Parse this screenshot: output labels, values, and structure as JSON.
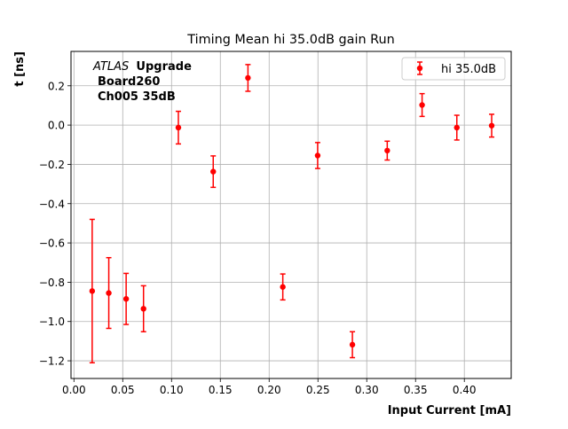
{
  "chart_data": {
    "type": "scatter",
    "title": "Timing Mean hi 35.0dB gain Run",
    "xlabel": "Input Current [mA]",
    "ylabel": "t [ns]",
    "xlim": [
      -0.003,
      0.448
    ],
    "ylim": [
      -1.29,
      0.375
    ],
    "xticks": [
      "0.00",
      "0.05",
      "0.10",
      "0.15",
      "0.20",
      "0.25",
      "0.30",
      "0.35",
      "0.40"
    ],
    "xtick_values": [
      0.0,
      0.05,
      0.1,
      0.15,
      0.2,
      0.25,
      0.3,
      0.35,
      0.4
    ],
    "yticks": [
      "0.2",
      "0.0",
      "−0.2",
      "−0.4",
      "−0.6",
      "−0.8",
      "−1.0",
      "−1.2"
    ],
    "ytick_values": [
      0.2,
      0.0,
      -0.2,
      -0.4,
      -0.6,
      -0.8,
      -1.0,
      -1.2
    ],
    "grid": true,
    "legend_position": "top-right",
    "annotation": {
      "atlas": "ATLAS",
      "line1_rest": "Upgrade",
      "line2": "Board260",
      "line3": "Ch005 35dB"
    },
    "series": [
      {
        "name": "hi 35.0dB",
        "color": "#ff0000",
        "marker": "circle",
        "x": [
          0.0187,
          0.0357,
          0.0535,
          0.0713,
          0.107,
          0.1427,
          0.1783,
          0.214,
          0.2497,
          0.2853,
          0.321,
          0.3567,
          0.3923,
          0.428
        ],
        "y": [
          -0.845,
          -0.855,
          -0.885,
          -0.935,
          -0.013,
          -0.237,
          0.24,
          -0.824,
          -0.155,
          -1.118,
          -0.13,
          0.102,
          -0.013,
          -0.003
        ],
        "yerr": [
          0.365,
          0.18,
          0.13,
          0.117,
          0.083,
          0.08,
          0.068,
          0.066,
          0.066,
          0.066,
          0.048,
          0.058,
          0.063,
          0.058
        ]
      }
    ]
  }
}
